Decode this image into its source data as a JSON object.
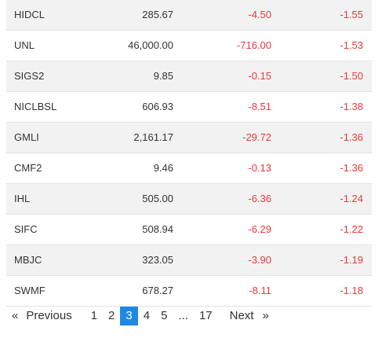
{
  "table": {
    "rows": [
      [
        "HIDCL",
        "285.67",
        "-4.50",
        "-1.55"
      ],
      [
        "UNL",
        "46,000.00",
        "-716.00",
        "-1.53"
      ],
      [
        "SIGS2",
        "9.85",
        "-0.15",
        "-1.50"
      ],
      [
        "NICLBSL",
        "606.93",
        "-8.51",
        "-1.38"
      ],
      [
        "GMLI",
        "2,161.17",
        "-29.72",
        "-1.36"
      ],
      [
        "CMF2",
        "9.46",
        "-0.13",
        "-1.36"
      ],
      [
        "IHL",
        "505.00",
        "-6.36",
        "-1.24"
      ],
      [
        "SIFC",
        "508.94",
        "-6.29",
        "-1.22"
      ],
      [
        "MBJC",
        "323.05",
        "-3.90",
        "-1.19"
      ],
      [
        "SWMF",
        "678.27",
        "-8.11",
        "-1.18"
      ]
    ]
  },
  "pagination": {
    "items": [
      "«",
      "Previous",
      "1",
      "2",
      "3",
      "4",
      "5",
      "...",
      "17",
      "Next",
      "»"
    ],
    "active": 4
  }
}
